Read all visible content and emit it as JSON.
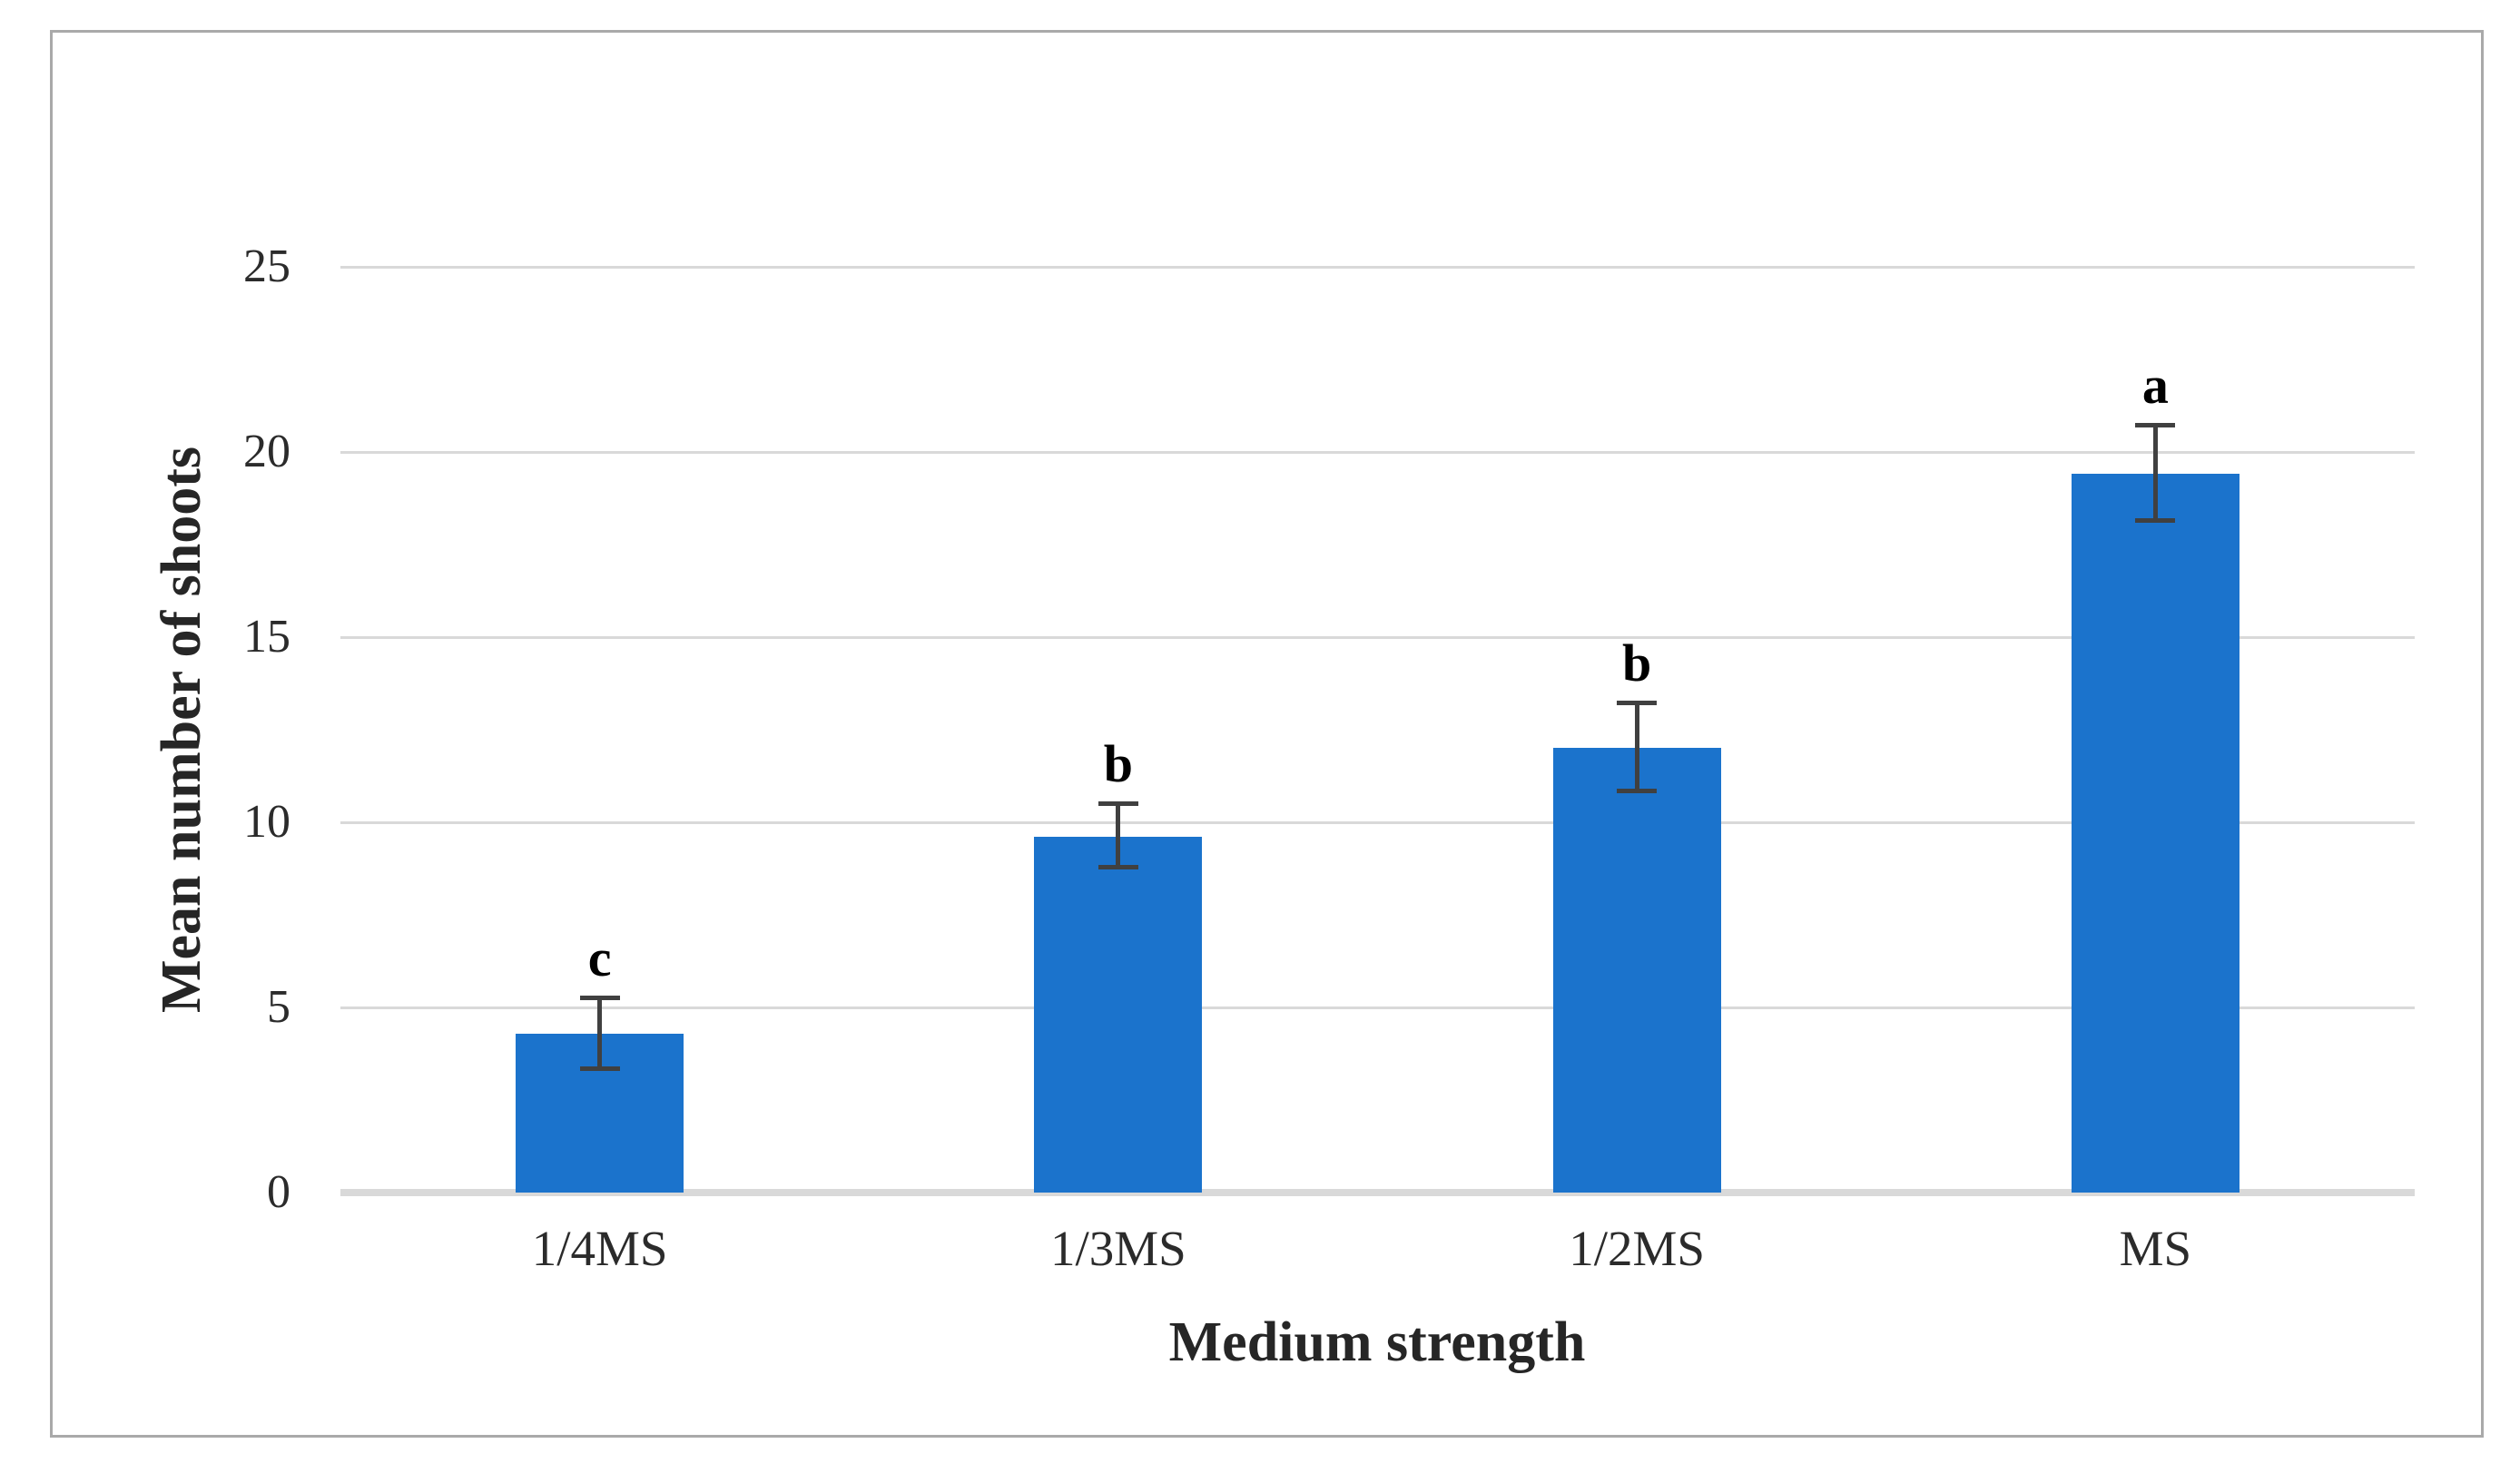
{
  "figure": {
    "background_color": "#ffffff",
    "border_color": "#a9a9a9"
  },
  "chart_data": {
    "type": "bar",
    "title": "",
    "xlabel": "Medium strength",
    "ylabel": "Mean number of shoots",
    "categories": [
      "1/4MS",
      "1/3MS",
      "1/2MS",
      "MS"
    ],
    "values": [
      4.3,
      9.6,
      12.0,
      19.4
    ],
    "error_plus": [
      0.9,
      0.85,
      1.15,
      1.25
    ],
    "error_minus": [
      0.9,
      0.75,
      1.1,
      1.2
    ],
    "sig_letters": [
      "c",
      "b",
      "b",
      "a"
    ],
    "yticks": [
      0,
      5,
      10,
      15,
      20,
      25
    ],
    "ylim": [
      0,
      25
    ],
    "grid": "horizontal",
    "legend_position": "none",
    "bar_color": "#1b73cc",
    "gridline_color": "#d9d9d9",
    "axis_line_color": "#d9d9d9",
    "error_bar_color": "#404040",
    "tick_text_color": "#2b2b2b",
    "title_text_color": "#262626",
    "letter_text_color": "#000000"
  }
}
